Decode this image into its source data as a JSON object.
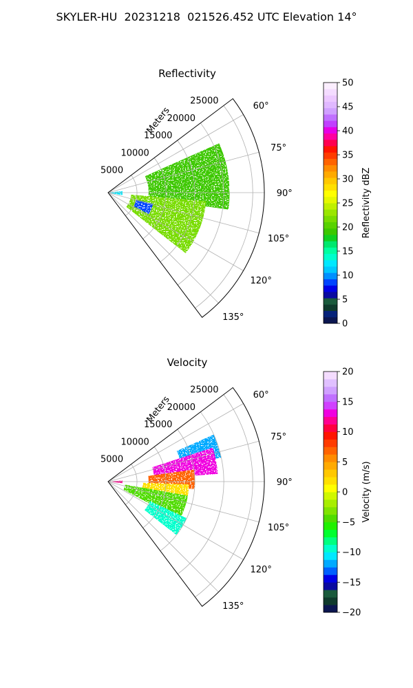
{
  "suptitle": "SKYLER-HU  20231218  021526.452 UTC Elevation 14°",
  "chart_data": [
    {
      "type": "heatmap",
      "projection": "polar-sector",
      "title": "Reflectivity",
      "radial_label": "Meters",
      "r_ticks": [
        5000,
        10000,
        15000,
        20000,
        25000
      ],
      "r_tick_labels": [
        "5000",
        "10000",
        "15000",
        "20000",
        "25000"
      ],
      "rlim": [
        0,
        27000
      ],
      "theta_ticks": [
        60,
        75,
        90,
        105,
        120,
        135
      ],
      "theta_tick_labels": [
        "60°",
        "75°",
        "90°",
        "105°",
        "120°",
        "135°"
      ],
      "theta_range": [
        53,
        143
      ],
      "grid": true,
      "colorbar": {
        "label": "Reflectivity dBZ",
        "range": [
          0,
          50
        ],
        "ticks": [
          0,
          5,
          10,
          15,
          20,
          25,
          30,
          35,
          40,
          45,
          50
        ],
        "tick_labels": [
          "0",
          "5",
          "10",
          "15",
          "20",
          "25",
          "30",
          "35",
          "40",
          "45",
          "50"
        ],
        "colors": [
          "#0b1650",
          "#06237a",
          "#0f3a2c",
          "#1a5a3c",
          "#0a0aa0",
          "#0000e6",
          "#0044ff",
          "#0090ff",
          "#00c8ff",
          "#00e8ff",
          "#00ffcc",
          "#00ffa0",
          "#00e86e",
          "#10d020",
          "#3cc800",
          "#58d200",
          "#78dc00",
          "#9ae600",
          "#c0f000",
          "#e6f800",
          "#ffff00",
          "#ffe000",
          "#ffc800",
          "#ffaa00",
          "#ff8c00",
          "#ff6400",
          "#ff3c00",
          "#ff1400",
          "#ff0050",
          "#ff00a0",
          "#e600e6",
          "#c040ff",
          "#c070ff",
          "#d0a0ff",
          "#e0b8ff",
          "#ecc8ff",
          "#f4dcff",
          "#fbeefe"
        ]
      },
      "observed_range_dbz": [
        3,
        28
      ],
      "echo_regions": [
        {
          "theta_range": [
            66,
            98
          ],
          "r_range": [
            7000,
            21000
          ],
          "dominant_value": 19
        },
        {
          "theta_range": [
            95,
            128
          ],
          "r_range": [
            4000,
            17000
          ],
          "dominant_value": 22
        },
        {
          "theta_range": [
            84,
            100
          ],
          "r_range": [
            0,
            2500
          ],
          "dominant_value": 12
        },
        {
          "theta_range": [
            104,
            118
          ],
          "r_range": [
            5000,
            8000
          ],
          "dominant_value": 8
        }
      ]
    },
    {
      "type": "heatmap",
      "projection": "polar-sector",
      "title": "Velocity",
      "radial_label": "Meters",
      "r_ticks": [
        5000,
        10000,
        15000,
        20000,
        25000
      ],
      "r_tick_labels": [
        "5000",
        "10000",
        "15000",
        "20000",
        "25000"
      ],
      "rlim": [
        0,
        27000
      ],
      "theta_ticks": [
        60,
        75,
        90,
        105,
        120,
        135
      ],
      "theta_tick_labels": [
        "60°",
        "75°",
        "90°",
        "105°",
        "120°",
        "135°"
      ],
      "theta_range": [
        53,
        143
      ],
      "grid": true,
      "colorbar": {
        "label": "Velocity (m/s)",
        "range": [
          -20,
          20
        ],
        "ticks": [
          -20,
          -15,
          -10,
          -5,
          0,
          5,
          10,
          15,
          20
        ],
        "tick_labels": [
          "−20",
          "−15",
          "−10",
          "−5",
          "0",
          "5",
          "10",
          "15",
          "20"
        ],
        "colors": [
          "#0b1650",
          "#0f3a2c",
          "#1a5a3c",
          "#0a0aa0",
          "#0000e6",
          "#0060ff",
          "#00aaff",
          "#00e8ff",
          "#00ffcc",
          "#00ff80",
          "#00ff30",
          "#20f000",
          "#50dc00",
          "#80e400",
          "#a8ee00",
          "#d0f800",
          "#ffff00",
          "#ffe000",
          "#ffc800",
          "#ffaa00",
          "#ff8c00",
          "#ff6400",
          "#ff3c00",
          "#ff1400",
          "#ff0040",
          "#ff0090",
          "#f000e0",
          "#d040ff",
          "#c070ff",
          "#d0a0ff",
          "#e0c0ff",
          "#f4dcff"
        ]
      },
      "observed_range_ms": [
        -13,
        15
      ],
      "velocity_regions": [
        {
          "theta_range": [
            66,
            78
          ],
          "r_range": [
            13000,
            20000
          ],
          "dominant_value": -12
        },
        {
          "theta_range": [
            72,
            86
          ],
          "r_range": [
            8000,
            19000
          ],
          "dominant_value": 13
        },
        {
          "theta_range": [
            82,
            95
          ],
          "r_range": [
            7000,
            15000
          ],
          "dominant_value": 7
        },
        {
          "theta_range": [
            92,
            105
          ],
          "r_range": [
            6000,
            14000
          ],
          "dominant_value": 2
        },
        {
          "theta_range": [
            100,
            118
          ],
          "r_range": [
            3000,
            14000
          ],
          "dominant_value": -5
        },
        {
          "theta_range": [
            115,
            128
          ],
          "r_range": [
            8000,
            15000
          ],
          "dominant_value": -10
        },
        {
          "theta_range": [
            86,
            96
          ],
          "r_range": [
            0,
            2500
          ],
          "dominant_value": 12
        }
      ]
    }
  ]
}
